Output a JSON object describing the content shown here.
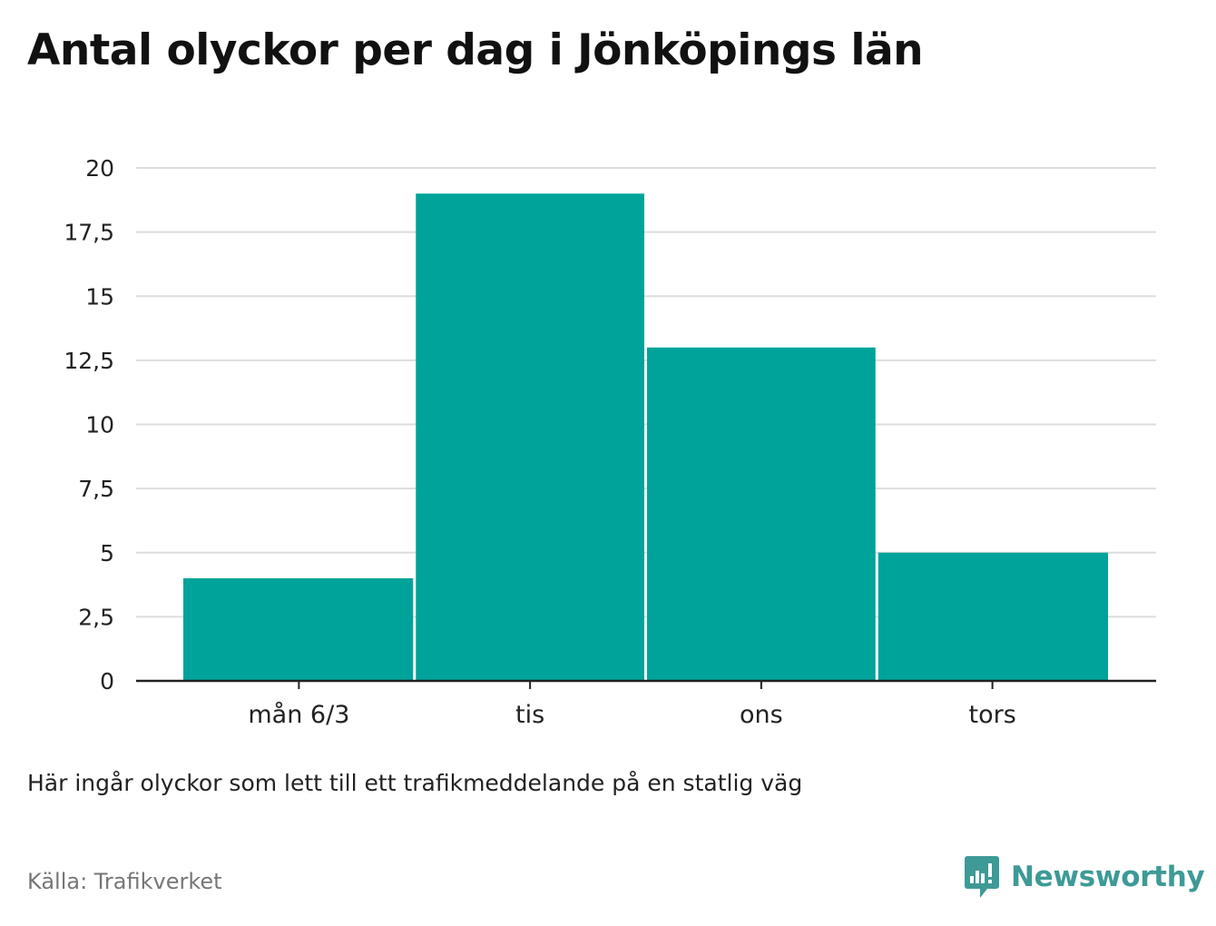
{
  "title": "Antal olyckor per dag i Jönköpings län",
  "note": "Här ingår olyckor som lett till ett trafikmeddelande på en statlig väg",
  "source": "Källa: Trafikverket",
  "brand": {
    "name": "Newsworthy",
    "icon": "newsworthy-logo-icon",
    "color": "#3d9a97"
  },
  "chart_data": {
    "type": "bar",
    "categories": [
      "mån 6/3",
      "tis",
      "ons",
      "tors"
    ],
    "values": [
      4,
      19,
      13,
      5
    ],
    "ylim": [
      0,
      20
    ],
    "yticks": [
      0,
      2.5,
      5,
      7.5,
      10,
      12.5,
      15,
      17.5,
      20
    ],
    "ytick_labels": [
      "0",
      "2,5",
      "5",
      "7,5",
      "10",
      "12,5",
      "15",
      "17,5",
      "20"
    ],
    "grid": true,
    "bar_color": "#00a39a",
    "grid_color": "#dddddd",
    "axis_color": "#222222",
    "legend": "none"
  }
}
